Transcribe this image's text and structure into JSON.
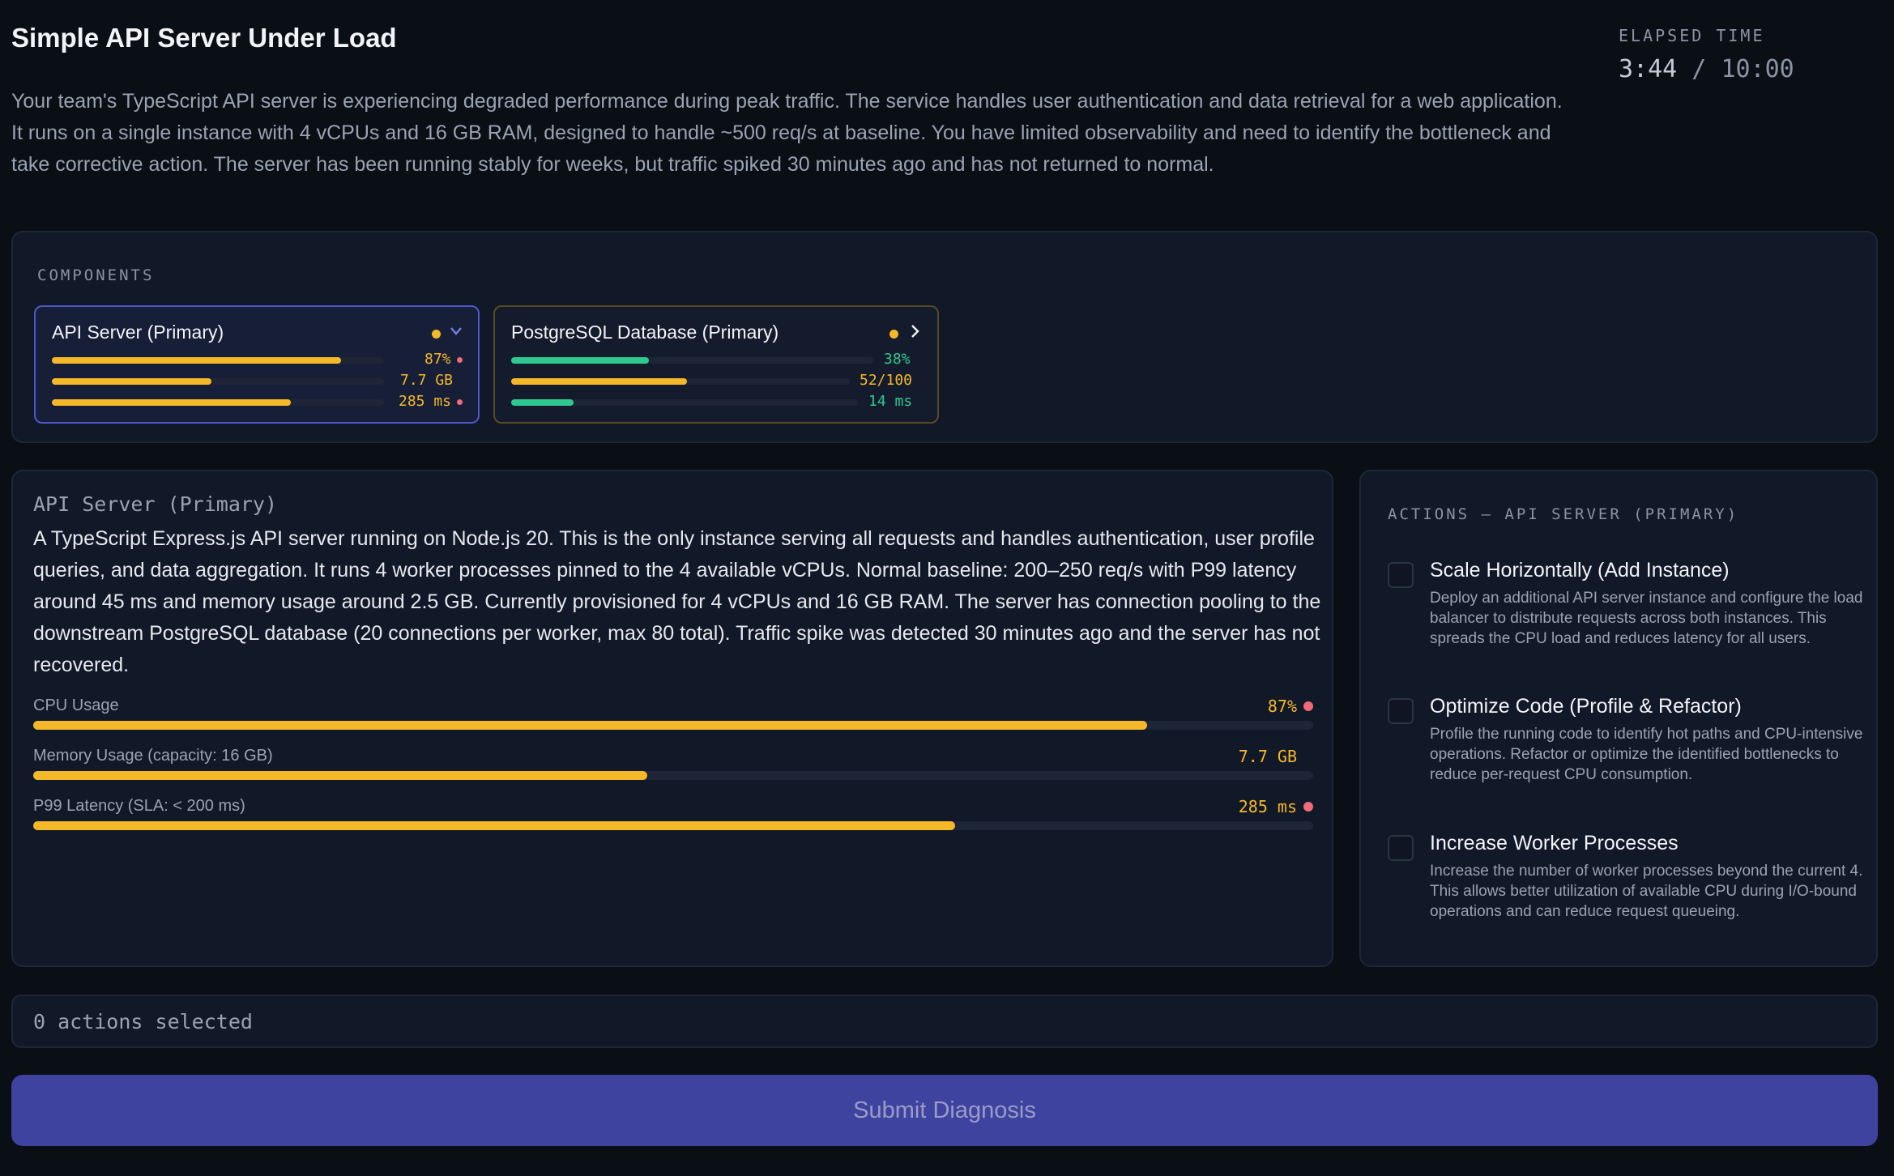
{
  "header": {
    "title": "Simple API Server Under Load",
    "description": "Your team's TypeScript API server is experiencing degraded performance during peak traffic. The service handles user authentication and data retrieval for a web application. It runs on a single instance with 4 vCPUs and 16 GB RAM, designed to handle ~500 req/s at baseline. You have limited observability and need to identify the bottleneck and take corrective action. The server has been running stably for weeks, but traffic spiked 30 minutes ago and has not returned to normal.",
    "elapsed_label": "ELAPSED TIME",
    "elapsed_current": "3:44",
    "elapsed_separator": " / ",
    "elapsed_total": "10:00"
  },
  "components": {
    "label": "COMPONENTS",
    "cards": [
      {
        "name": "API Server (Primary)",
        "status_color": "#f5b829",
        "chevron": "chevron-down-icon",
        "selected": true,
        "metrics": [
          {
            "value": "87%",
            "fraction": 0.87,
            "color": "#f5b829",
            "alert": true
          },
          {
            "value": "7.7 GB",
            "fraction": 0.48,
            "color": "#f5b829",
            "alert": false
          },
          {
            "value": "285 ms",
            "fraction": 0.72,
            "color": "#f5b829",
            "alert": true
          }
        ]
      },
      {
        "name": "PostgreSQL Database (Primary)",
        "status_color": "#f5b829",
        "chevron": "chevron-right-icon",
        "selected": false,
        "metrics": [
          {
            "value": "38%",
            "fraction": 0.38,
            "color": "#2fc98f",
            "alert": false
          },
          {
            "value": "52/100",
            "fraction": 0.52,
            "color": "#f5b829",
            "alert": false
          },
          {
            "value": "14 ms",
            "fraction": 0.18,
            "color": "#2fc98f",
            "alert": false
          }
        ]
      }
    ]
  },
  "detail": {
    "title": "API Server (Primary)",
    "description": "A TypeScript Express.js API server running on Node.js 20. This is the only instance serving all requests and handles authentication, user profile queries, and data aggregation. It runs 4 worker processes pinned to the 4 available vCPUs. Normal baseline: 200–250 req/s with P99 latency around 45 ms and memory usage around 2.5 GB. Currently provisioned for 4 vCPUs and 16 GB RAM. The server has connection pooling to the downstream PostgreSQL database (20 connections per worker, max 80 total). Traffic spike was detected 30 minutes ago and the server has not recovered.",
    "metrics": [
      {
        "label": "CPU Usage",
        "value": "87%",
        "fraction": 0.87,
        "alert": true
      },
      {
        "label": "Memory Usage (capacity: 16 GB)",
        "value": "7.7 GB",
        "fraction": 0.48,
        "alert": false
      },
      {
        "label": "P99 Latency (SLA: < 200 ms)",
        "value": "285 ms",
        "fraction": 0.72,
        "alert": true
      }
    ]
  },
  "actions": {
    "label": "ACTIONS — API SERVER (PRIMARY)",
    "items": [
      {
        "title": "Scale Horizontally (Add Instance)",
        "description": "Deploy an additional API server instance and configure the load balancer to distribute requests across both instances. This spreads the CPU load and reduces latency for all users.",
        "checked": false
      },
      {
        "title": "Optimize Code (Profile & Refactor)",
        "description": "Profile the running code to identify hot paths and CPU-intensive operations. Refactor or optimize the identified bottlenecks to reduce per-request CPU consumption.",
        "checked": false
      },
      {
        "title": "Increase Worker Processes",
        "description": "Increase the number of worker processes beyond the current 4. This allows better utilization of available CPU during I/O-bound operations and can reduce request queueing.",
        "checked": false
      }
    ]
  },
  "footer": {
    "selected_text": "0 actions selected",
    "submit_label": "Submit Diagnosis"
  }
}
